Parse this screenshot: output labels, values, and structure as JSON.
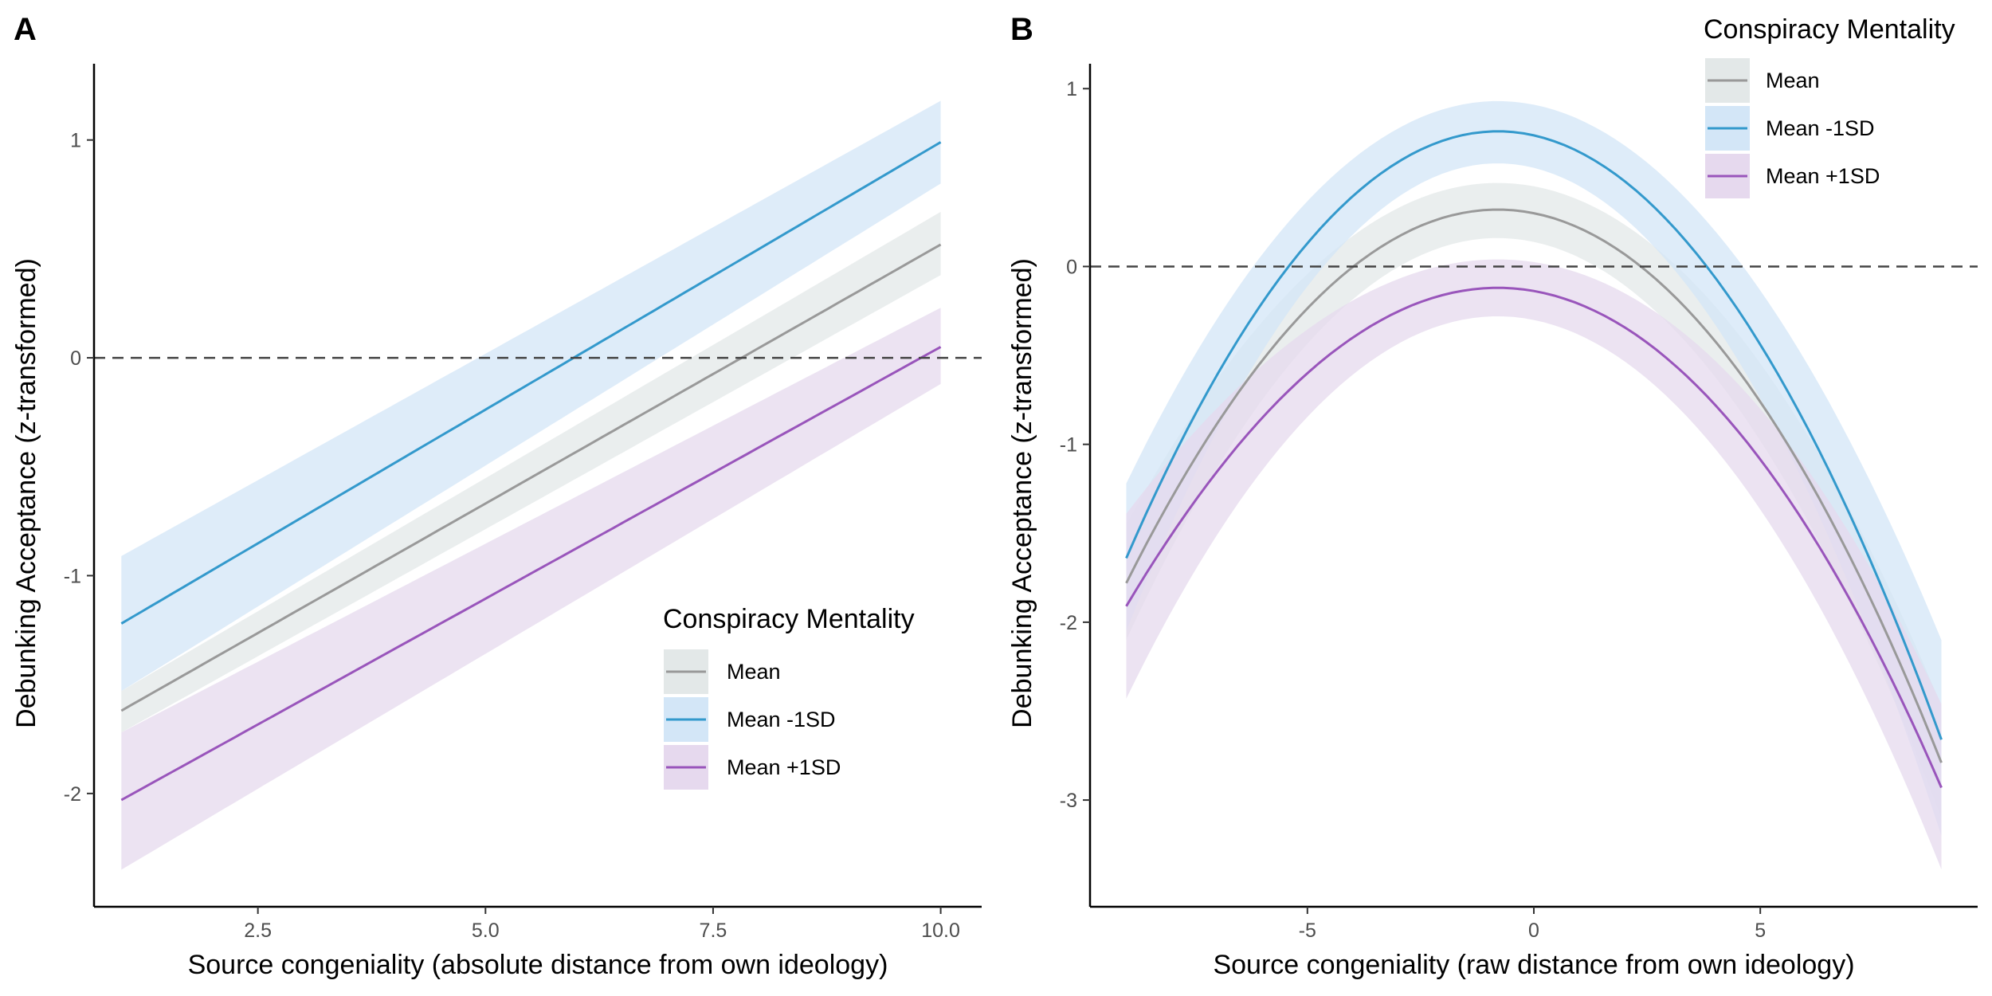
{
  "chart_data": [
    {
      "panel": "A",
      "type": "line",
      "xlabel": "Source congeniality (absolute distance from own ideology)",
      "ylabel": "Debunking Acceptance (z-transformed)",
      "xlim": [
        0.7,
        10.45
      ],
      "ylim": [
        -2.52,
        1.35
      ],
      "xticks": [
        2.5,
        5.0,
        7.5,
        10.0
      ],
      "xtick_labels": [
        "2.5",
        "5.0",
        "7.5",
        "10.0"
      ],
      "yticks": [
        -2,
        -1,
        0,
        1
      ],
      "ytick_labels": [
        "-2",
        "-1",
        "0",
        "1"
      ],
      "reference_line_y": 0,
      "legend": {
        "title": "Conspiracy Mentality",
        "position": "bottom-right"
      },
      "x_range": [
        1,
        10
      ],
      "series": [
        {
          "name": "Mean",
          "color": "#999999",
          "fill": "#e3e8e8",
          "model": "linear",
          "start": [
            1,
            -1.62
          ],
          "end": [
            10,
            0.52
          ],
          "ci_start": [
            -1.72,
            -1.53
          ],
          "ci_end": [
            0.38,
            0.67
          ]
        },
        {
          "name": "Mean -1SD",
          "color": "#3399cc",
          "fill": "#d3e6f7",
          "model": "linear",
          "start": [
            1,
            -1.22
          ],
          "end": [
            10,
            0.99
          ],
          "ci_start": [
            -1.53,
            -0.91
          ],
          "ci_end": [
            0.8,
            1.18
          ]
        },
        {
          "name": "Mean +1SD",
          "color": "#9955bb",
          "fill": "#e6d9ee",
          "model": "linear",
          "start": [
            1,
            -2.03
          ],
          "end": [
            10,
            0.05
          ],
          "ci_start": [
            -2.35,
            -1.72
          ],
          "ci_end": [
            -0.12,
            0.23
          ]
        }
      ]
    },
    {
      "panel": "B",
      "type": "line",
      "xlabel": "Source congeniality (raw distance from own ideology)",
      "ylabel": "Debunking Acceptance (z-transformed)",
      "xlim": [
        -9.8,
        9.8
      ],
      "ylim": [
        -3.6,
        1.14
      ],
      "xticks": [
        -5,
        0,
        5
      ],
      "xtick_labels": [
        "-5",
        "0",
        "5"
      ],
      "yticks": [
        -3,
        -2,
        -1,
        0,
        1
      ],
      "ytick_labels": [
        "-3",
        "-2",
        "-1",
        "0",
        "1"
      ],
      "reference_line_y": 0,
      "legend": {
        "title": "Conspiracy Mentality",
        "position": "top-right"
      },
      "x_range": [
        -9,
        9
      ],
      "series": [
        {
          "name": "Mean",
          "color": "#999999",
          "fill": "#e3e8e8",
          "model": "quadratic",
          "vertex_x": -0.8,
          "peak": 0.32,
          "ends": [
            -1.78,
            -2.79
          ],
          "ci_peak": [
            0.16,
            0.47
          ],
          "ci_ends": [
            [
              -2.1,
              -1.45
            ],
            [
              -3.1,
              -2.47
            ]
          ]
        },
        {
          "name": "Mean -1SD",
          "color": "#3399cc",
          "fill": "#d3e6f7",
          "model": "quadratic",
          "vertex_x": -0.8,
          "peak": 0.76,
          "ends": [
            -1.64,
            -2.66
          ],
          "ci_peak": [
            0.58,
            0.93
          ],
          "ci_ends": [
            [
              -2.05,
              -1.22
            ],
            [
              -3.2,
              -2.1
            ]
          ]
        },
        {
          "name": "Mean +1SD",
          "color": "#9955bb",
          "fill": "#e6d9ee",
          "model": "quadratic",
          "vertex_x": -0.8,
          "peak": -0.12,
          "ends": [
            -1.91,
            -2.93
          ],
          "ci_peak": [
            -0.28,
            0.04
          ],
          "ci_ends": [
            [
              -2.43,
              -1.39
            ],
            [
              -3.39,
              -2.46
            ]
          ]
        }
      ]
    }
  ]
}
